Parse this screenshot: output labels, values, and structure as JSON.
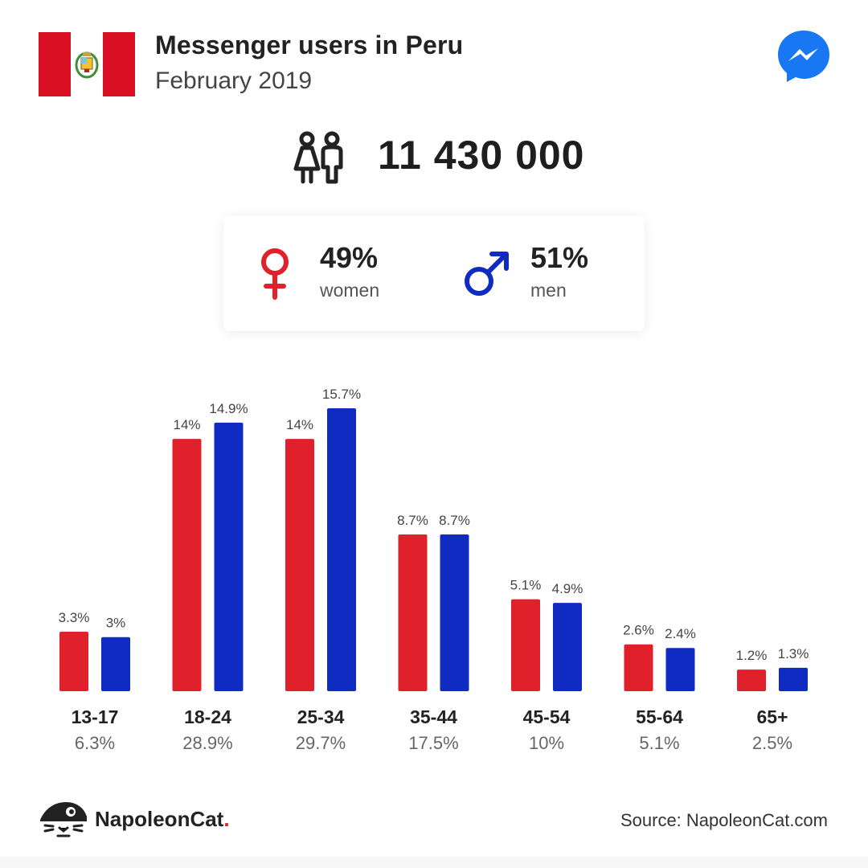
{
  "header": {
    "title": "Messenger users in Peru",
    "subtitle": "February 2019"
  },
  "total_users": "11 430 000",
  "gender": {
    "women": {
      "pct": "49%",
      "label": "women"
    },
    "men": {
      "pct": "51%",
      "label": "men"
    }
  },
  "colors": {
    "women": "#e0202a",
    "men": "#0f2bc2",
    "flag_red": "#d91023",
    "messenger": "#1877f2"
  },
  "icons": [
    "peru-flag-icon",
    "messenger-icon",
    "users-icon",
    "female-icon",
    "male-icon",
    "napoleoncat-logo-icon"
  ],
  "chart_data": {
    "type": "bar",
    "categories": [
      "13-17",
      "18-24",
      "25-34",
      "35-44",
      "45-54",
      "55-64",
      "65+"
    ],
    "category_totals": [
      "6.3%",
      "28.9%",
      "29.7%",
      "17.5%",
      "10%",
      "5.1%",
      "2.5%"
    ],
    "series": [
      {
        "name": "women",
        "values": [
          3.3,
          14,
          14,
          8.7,
          5.1,
          2.6,
          1.2
        ],
        "labels": [
          "3.3%",
          "14%",
          "14%",
          "8.7%",
          "5.1%",
          "2.6%",
          "1.2%"
        ]
      },
      {
        "name": "men",
        "values": [
          3,
          14.9,
          15.7,
          8.7,
          4.9,
          2.4,
          1.3
        ],
        "labels": [
          "3%",
          "14.9%",
          "15.7%",
          "8.7%",
          "4.9%",
          "2.4%",
          "1.3%"
        ]
      }
    ],
    "ylim": [
      0,
      15.7
    ]
  },
  "footer": {
    "brand": "NapoleonCat",
    "brand_dot": ".",
    "source": "Source: NapoleonCat.com"
  }
}
